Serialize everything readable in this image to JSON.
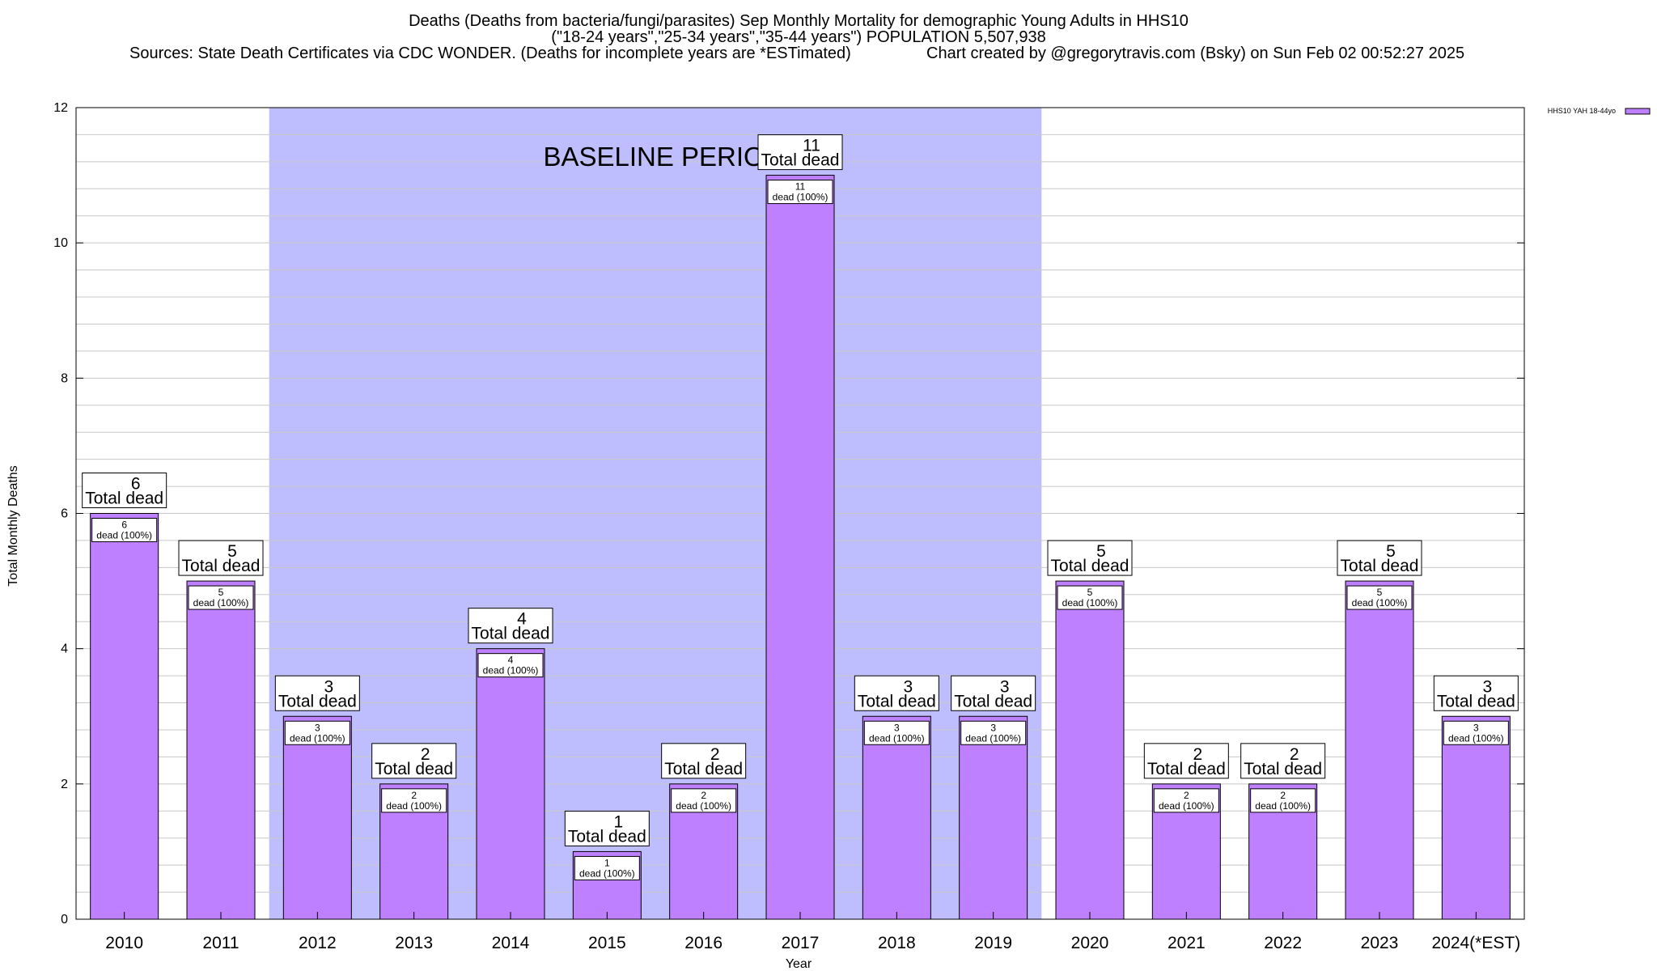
{
  "chart_data": {
    "type": "bar",
    "title": "Deaths (Deaths from bacteria/fungi/parasites) Sep Monthly Mortality for demographic Young Adults in HHS10",
    "subtitle": "(\"18-24 years\",\"25-34 years\",\"35-44 years\") POPULATION 5,507,938",
    "sources": "Sources: State Death Certificates via CDC WONDER. (Deaths for incomplete years are *ESTimated)",
    "credit": "Chart created by @gregorytravis.com (Bsky) on Sun Feb 02 00:52:27 2025",
    "xlabel": "Year",
    "ylabel": "Total Monthly Deaths",
    "ylim": [
      0,
      12
    ],
    "yticks": [
      "0",
      "2",
      "4",
      "6",
      "8",
      "10",
      "12"
    ],
    "categories": [
      "2010",
      "2011",
      "2012",
      "2013",
      "2014",
      "2015",
      "2016",
      "2017",
      "2018",
      "2019",
      "2020",
      "2021",
      "2022",
      "2023",
      "2024(*EST)"
    ],
    "series": [
      {
        "name": "HHS10 YAH 18-44yo",
        "values": [
          6,
          5,
          3,
          2,
          4,
          1,
          2,
          11,
          3,
          3,
          5,
          2,
          2,
          5,
          3
        ]
      }
    ],
    "total_label": "Total dead",
    "inner_label": "dead (100%)",
    "baseline": {
      "label": "BASELINE PERIOD",
      "from": "2012",
      "to": "2019"
    },
    "grid": true,
    "legend_position": "top-right",
    "colors": {
      "bar": "#bf80ff",
      "baseline": "#bebeff",
      "grid": "#c8c8c8"
    }
  }
}
